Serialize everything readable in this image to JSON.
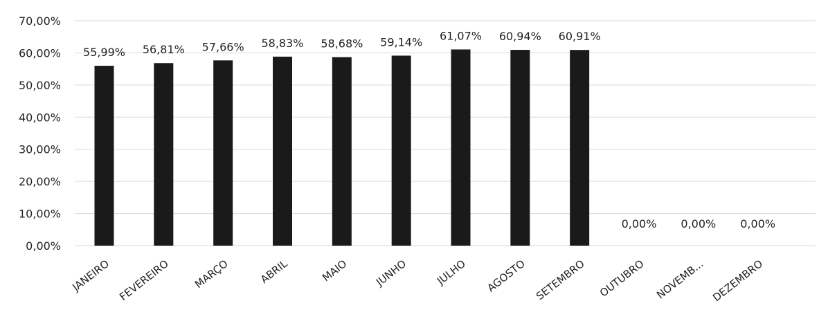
{
  "chart_data": {
    "type": "bar",
    "title": "",
    "xlabel": "",
    "ylabel": "",
    "ylim": [
      0,
      70
    ],
    "y_ticks": [
      "0,00%",
      "10,00%",
      "20,00%",
      "30,00%",
      "40,00%",
      "50,00%",
      "60,00%",
      "70,00%"
    ],
    "grid": true,
    "categories": [
      "JANEIRO",
      "FEVEREIRO",
      "MARÇO",
      "ABRIL",
      "MAIO",
      "JUNHO",
      "JULHO",
      "AGOSTO",
      "SETEMBRO",
      "OUTUBRO",
      "NOVEMB...",
      "DEZEMBRO"
    ],
    "values": [
      55.99,
      56.81,
      57.66,
      58.83,
      58.68,
      59.14,
      61.07,
      60.94,
      60.91,
      0,
      0,
      0
    ],
    "data_labels": [
      "55,99%",
      "56,81%",
      "57,66%",
      "58,83%",
      "58,68%",
      "59,14%",
      "61,07%",
      "60,94%",
      "60,91%",
      "0,00%",
      "0,00%",
      "0,00%"
    ],
    "bar_color": "#1a1a1a"
  }
}
